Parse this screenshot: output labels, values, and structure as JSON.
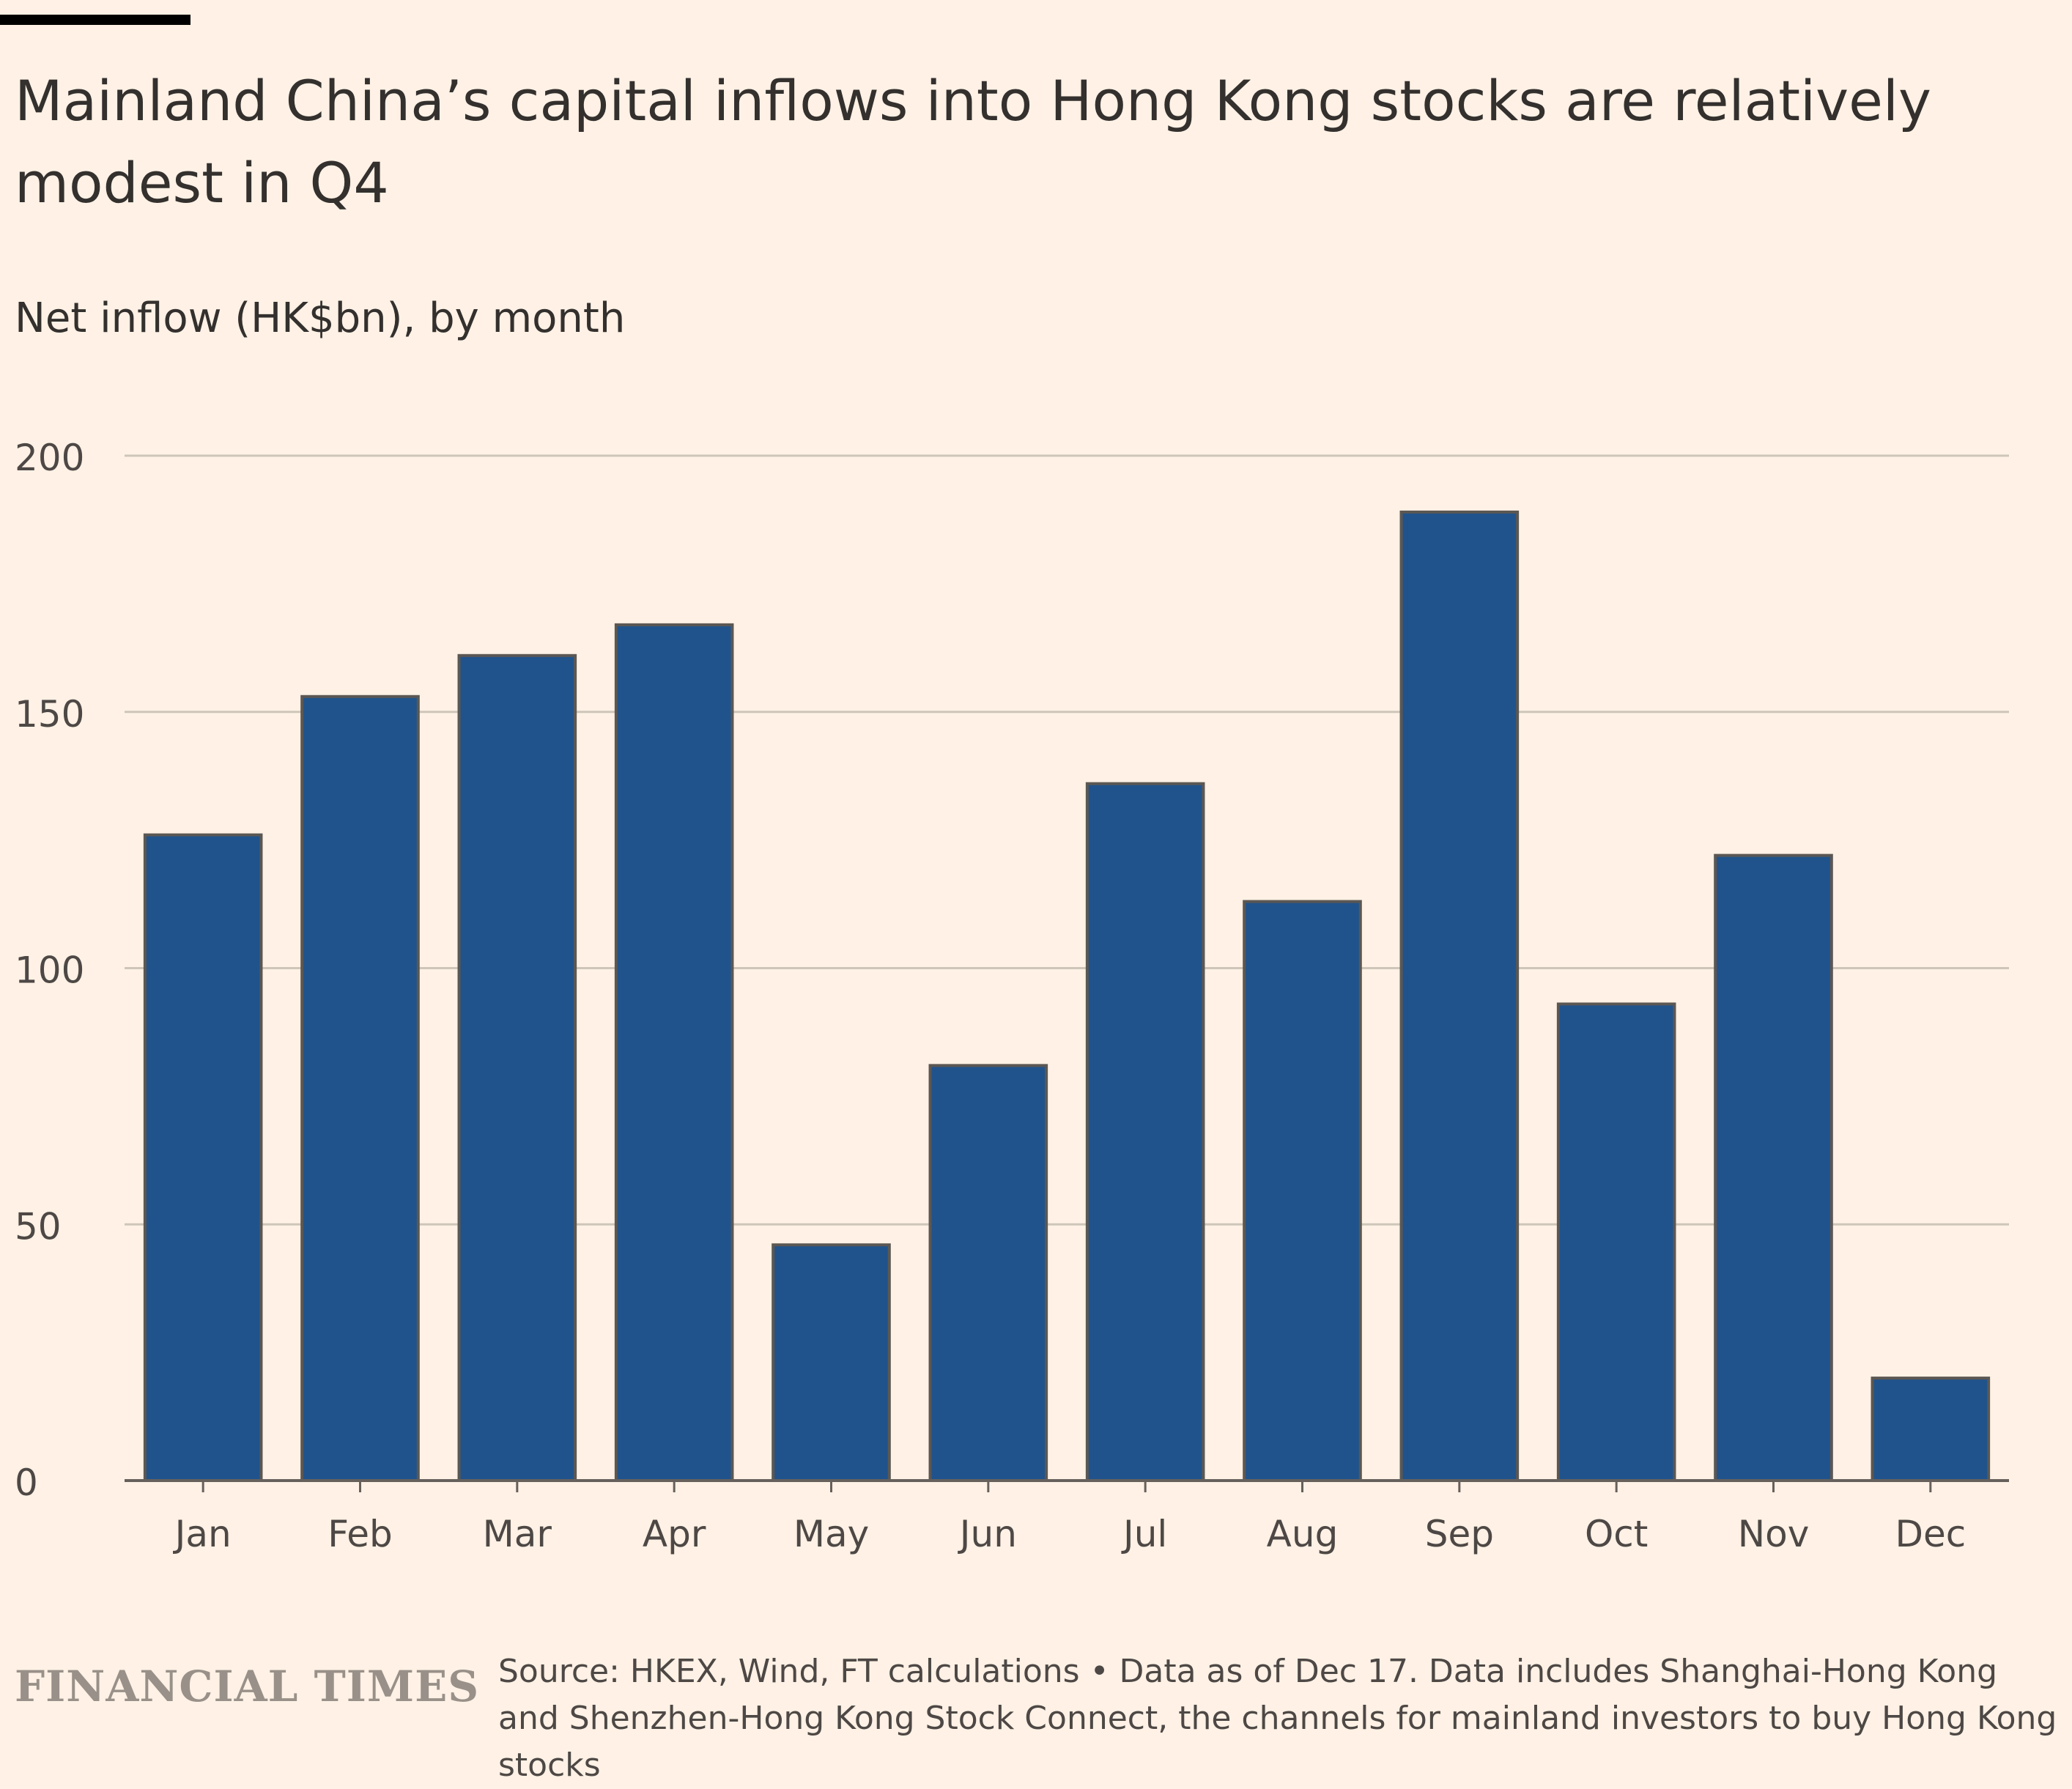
{
  "header": {
    "title": "Mainland China’s capital inflows into Hong Kong stocks are relatively modest in Q4",
    "subtitle": "Net inflow (HK$bn), by month"
  },
  "chart_data": {
    "type": "bar",
    "title": "Mainland China’s capital inflows into Hong Kong stocks are relatively modest in Q4",
    "ylabel": "Net inflow (HK$bn), by month",
    "xlabel": "",
    "categories": [
      "Jan",
      "Feb",
      "Mar",
      "Apr",
      "May",
      "Jun",
      "Jul",
      "Aug",
      "Sep",
      "Oct",
      "Nov",
      "Dec"
    ],
    "values": [
      126,
      153,
      161,
      167,
      46,
      81,
      136,
      113,
      189,
      93,
      122,
      20
    ],
    "ylim": [
      0,
      200
    ],
    "yticks": [
      "0",
      "50",
      "100",
      "150",
      "200"
    ],
    "grid": true,
    "colors": {
      "bar": "#20538c",
      "bar_outline": "#5b5753",
      "grid": "#cec6b9",
      "axis": "#66605c",
      "text": "#4d4845"
    }
  },
  "footer": {
    "logo_text": "FINANCIAL TIMES",
    "source": "Source: HKEX, Wind, FT calculations • Data as of Dec 17. Data includes Shanghai-Hong Kong and Shenzhen-Hong Kong Stock Connect, the channels for mainland investors to buy Hong Kong stocks"
  }
}
